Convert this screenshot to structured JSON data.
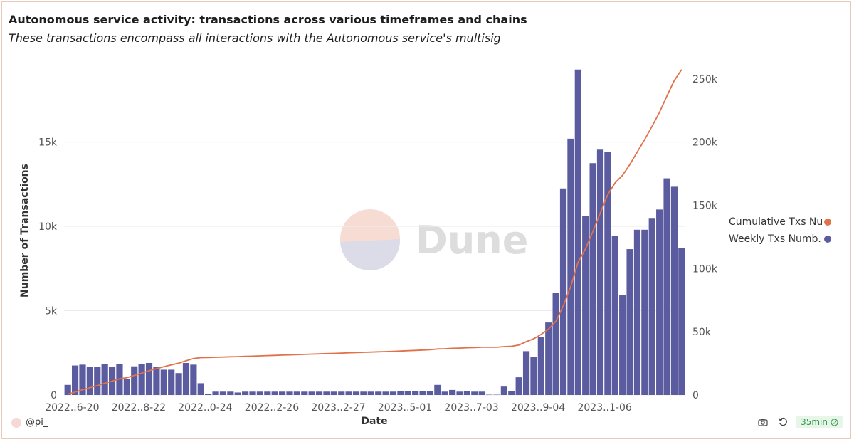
{
  "header": {
    "title": "Autonomous service activity: transactions across various timeframes and chains",
    "subtitle": "These transactions encompass all interactions with the Autonomous service's multisig"
  },
  "footer": {
    "user": "@pi_",
    "refresh_label": "35min"
  },
  "watermark": {
    "text": "Dune"
  },
  "colors": {
    "bar": "#5b5b9f",
    "line": "#e0714b",
    "grid": "#ececec",
    "text": "#555555"
  },
  "chart_data": {
    "type": "bar",
    "title": "Autonomous service activity: transactions across various timeframes and chains",
    "xlabel": "Date",
    "ylabel": "Number of Transactions",
    "ylim": [
      0,
      19500
    ],
    "y2lim": [
      0,
      260000
    ],
    "yticks": [
      0,
      5000,
      10000,
      15000
    ],
    "yticks_labels": [
      "0",
      "5k",
      "10k",
      "15k"
    ],
    "y2ticks": [
      0,
      50000,
      100000,
      150000,
      200000,
      250000
    ],
    "y2ticks_labels": [
      "0",
      "50k",
      "100k",
      "150k",
      "200k",
      "250k"
    ],
    "xtick_labels": [
      "2022..6-20",
      "2022..8-22",
      "2022..0-24",
      "2022..2-26",
      "2023..2-27",
      "2023..5-01",
      "2023..7-03",
      "2023..9-04",
      "2023..1-06"
    ],
    "xtick_index": [
      0,
      9,
      18,
      27,
      36,
      45,
      54,
      63,
      72
    ],
    "legend": [
      {
        "name": "Cumulative Txs Nu",
        "color": "#e0714b",
        "type": "line"
      },
      {
        "name": "Weekly Txs Numb.",
        "color": "#5b5b9f",
        "type": "bar"
      }
    ],
    "series": [
      {
        "name": "Weekly Txs Number",
        "axis": "left",
        "values": [
          600,
          1750,
          1800,
          1650,
          1650,
          1850,
          1650,
          1850,
          950,
          1700,
          1850,
          1900,
          1650,
          1500,
          1500,
          1300,
          1900,
          1800,
          700,
          50,
          200,
          200,
          200,
          150,
          200,
          200,
          200,
          200,
          200,
          200,
          200,
          200,
          200,
          200,
          200,
          200,
          200,
          200,
          200,
          200,
          200,
          200,
          200,
          200,
          200,
          250,
          250,
          250,
          250,
          250,
          600,
          200,
          300,
          200,
          250,
          200,
          200,
          20,
          20,
          500,
          250,
          1050,
          2600,
          2250,
          3450,
          4300,
          6050,
          12250,
          15200,
          19300,
          10600,
          13750,
          14550,
          14400,
          9450,
          5950,
          8650,
          9800,
          9800,
          10500,
          11000,
          12850,
          12350,
          8700
        ]
      },
      {
        "name": "Cumulative Txs Number",
        "axis": "right",
        "values": [
          600,
          2350,
          4150,
          5800,
          7450,
          9300,
          10950,
          12800,
          13750,
          15450,
          17300,
          19200,
          20850,
          22350,
          23850,
          25150,
          27050,
          28850,
          29550,
          29600,
          29800,
          30000,
          30200,
          30350,
          30550,
          30750,
          30950,
          31150,
          31350,
          31550,
          31750,
          31950,
          32150,
          32350,
          32550,
          32750,
          32950,
          33150,
          33350,
          33550,
          33750,
          33950,
          34150,
          34350,
          34550,
          34800,
          35050,
          35300,
          35550,
          35800,
          36400,
          36600,
          36900,
          37100,
          37350,
          37550,
          37750,
          37770,
          37790,
          38290,
          38540,
          39590,
          42190,
          44440,
          47890,
          52190,
          58240,
          70490,
          85690,
          104990,
          115590,
          129340,
          143890,
          158290,
          167740,
          173690,
          182340,
          192140,
          201940,
          212440,
          223440,
          236290,
          248640,
          257340
        ]
      }
    ]
  }
}
